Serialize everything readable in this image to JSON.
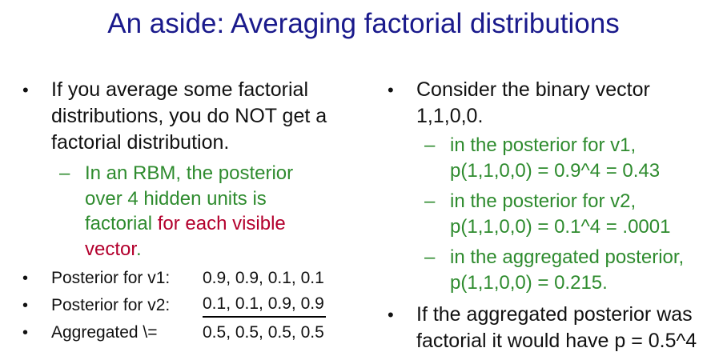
{
  "title": "An aside: Averaging factorial distributions",
  "left": {
    "bullet1": [
      "If you average some factorial",
      "distributions, you do NOT get a",
      "factorial distribution."
    ],
    "sub": {
      "line1": "In an RBM, the posterior",
      "line2": "over 4 hidden units is",
      "line3_green": "factorial ",
      "line3_red": "for each visible",
      "line4_red": "vector",
      "line4_green": "."
    },
    "rows": [
      {
        "label": "Posterior for v1:",
        "value": "0.9, 0.9, 0.1, 0.1"
      },
      {
        "label": "Posterior for v2:",
        "value": "0.1, 0.1, 0.9, 0.9"
      },
      {
        "label": "Aggregated \\=",
        "value": "0.5, 0.5, 0.5, 0.5"
      }
    ]
  },
  "right": {
    "bullet1": [
      "Consider the binary vector",
      "1,1,0,0."
    ],
    "subs": [
      [
        "in the posterior for v1,",
        "p(1,1,0,0) = 0.9^4 = 0.43"
      ],
      [
        "in the posterior for v2,",
        "p(1,1,0,0) = 0.1^4 = .0001"
      ],
      [
        "in the aggregated posterior,",
        "p(1,1,0,0) = 0.215."
      ]
    ],
    "bullet2": [
      "If the aggregated posterior was",
      "factorial it would have p = 0.5^4"
    ]
  },
  "colors": {
    "title": "#1a1a8c",
    "green": "#2e8b2e",
    "red": "#b3002d",
    "text": "#111111"
  },
  "bullet_glyph": "•",
  "dash_glyph": "–"
}
